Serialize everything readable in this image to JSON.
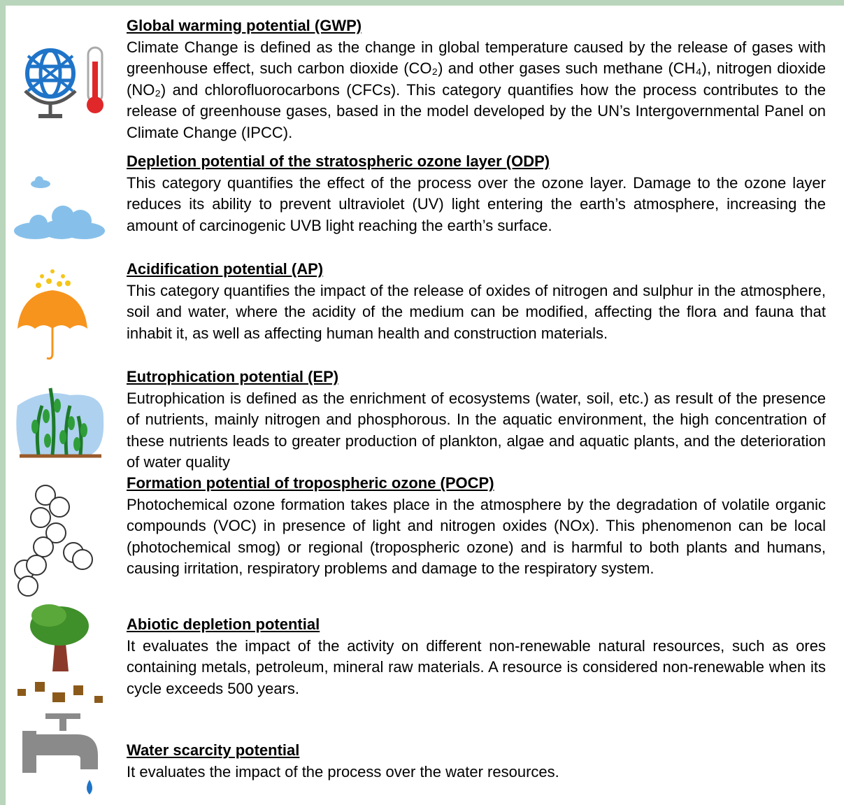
{
  "items": [
    {
      "title": "Global warming potential (GWP)",
      "body": "Climate Change is defined as the change in global temperature caused by the release of gases with greenhouse effect, such carbon dioxide (CO₂) and other gases such methane (CH₄), nitrogen dioxide (NO₂) and chlorofluorocarbons (CFCs). This category quantifies how the process contributes to the release of greenhouse gases, based in the model developed by the UN’s Intergovernmental Panel on Climate Change (IPCC)."
    },
    {
      "title": "Depletion potential of the stratospheric ozone layer (ODP)",
      "body": "This category quantifies the effect of the process over the ozone layer. Damage to the ozone layer reduces its ability to prevent ultraviolet (UV) light entering the earth’s atmosphere, increasing the amount of carcinogenic UVB light reaching the earth’s surface."
    },
    {
      "title": "Acidification potential (AP)",
      "body": "This category quantifies the impact of the release of oxides of nitrogen and sulphur in the atmosphere, soil and water, where the acidity of the medium can be modified, affecting the flora and fauna that inhabit it, as well as affecting human health and construction materials."
    },
    {
      "title": "Eutrophication potential (EP)",
      "body": "Eutrophication is defined as the enrichment of ecosystems (water, soil, etc.) as result of the presence of nutrients, mainly nitrogen and phosphorous. In the aquatic environment, the high concentration of these nutrients leads to greater production of plankton, algae and aquatic plants, and the deterioration of water quality"
    },
    {
      "title": "Formation potential of tropospheric ozone (POCP)",
      "body": "Photochemical ozone formation takes place in the atmosphere by the degradation of volatile organic compounds (VOC) in presence of light and nitrogen oxides (NOx). This phenomenon can be local (photochemical smog) or regional (tropospheric ozone) and is harmful to both plants and humans, causing irritation, respiratory problems and damage to the respiratory system."
    },
    {
      "title": "Abiotic depletion potential",
      "body": "It evaluates the impact of the activity on different non-renewable natural resources, such as ores containing metals, petroleum, mineral raw materials. A resource is considered non-renewable when its cycle exceeds 500 years."
    },
    {
      "title": "Water scarcity potential",
      "body": "It evaluates the impact of the process over the water resources."
    }
  ]
}
